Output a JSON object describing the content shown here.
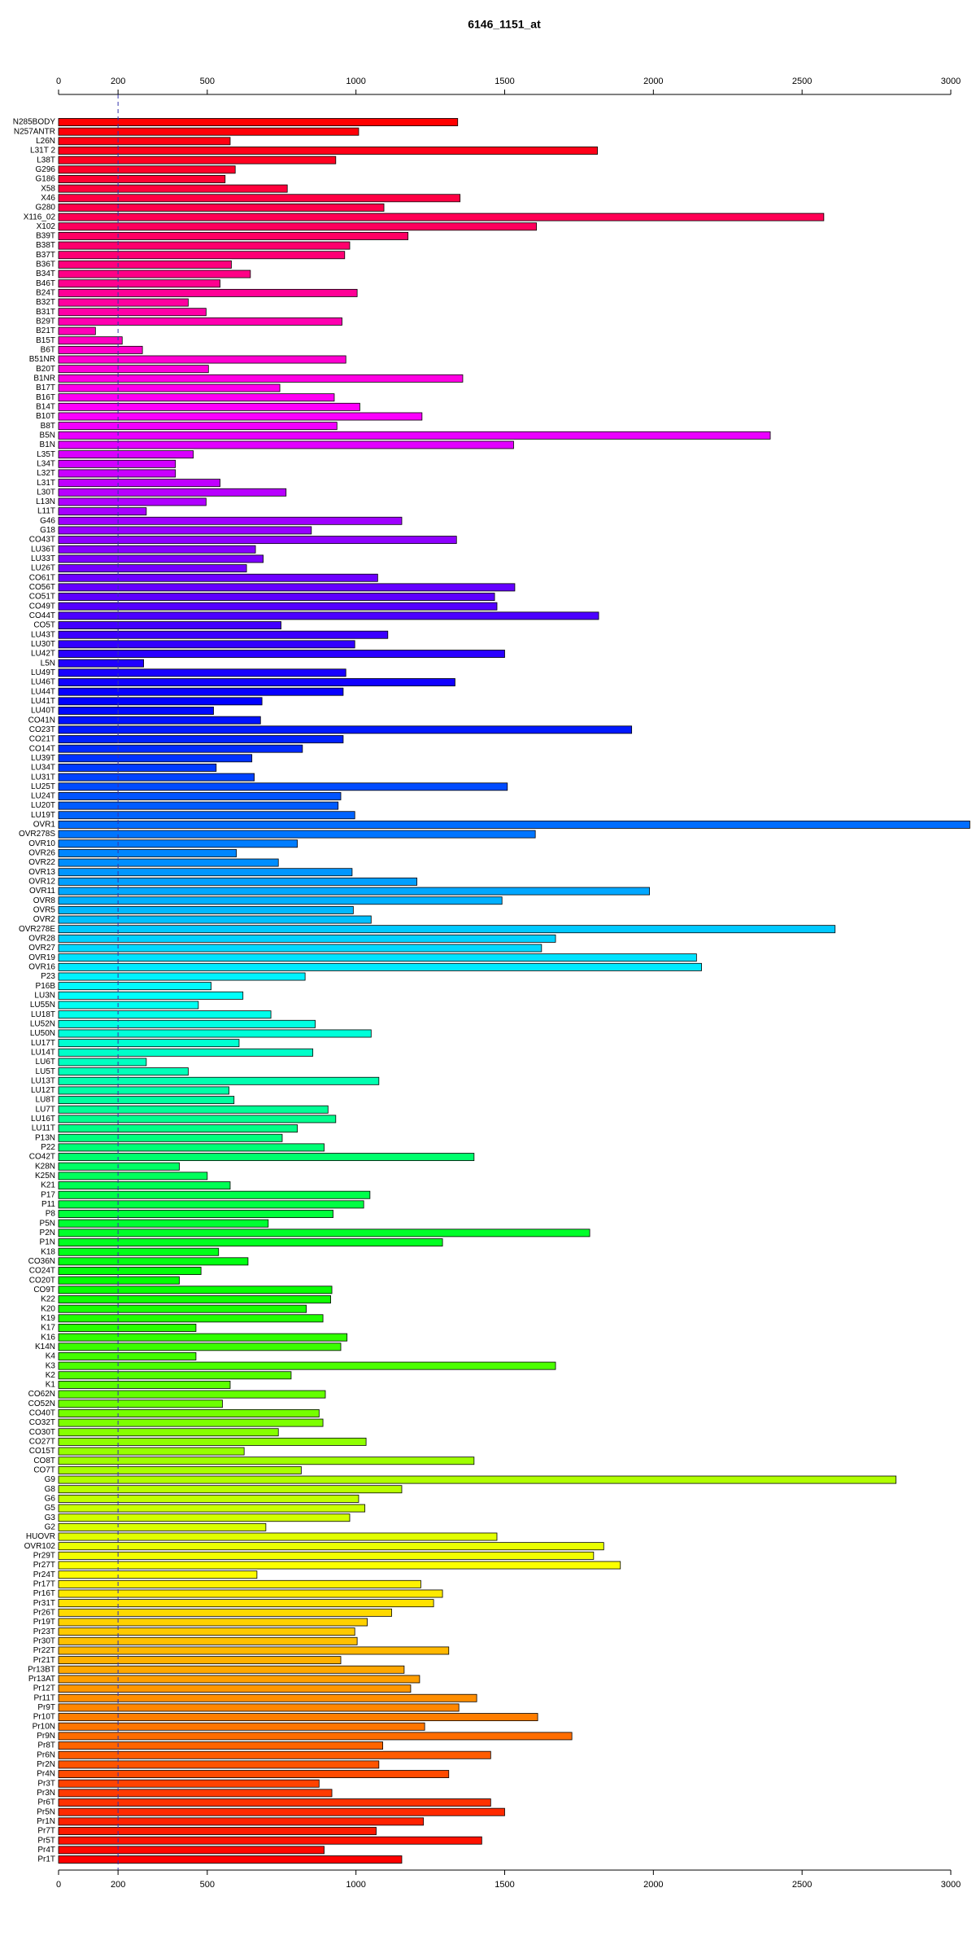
{
  "chart_data": {
    "type": "barh",
    "title": "6146_1151_at",
    "categories": [
      "N285BODY",
      "N257ANTR",
      "L26N",
      "L31T 2",
      "L38T",
      "G296",
      "G186",
      "X58",
      "X46",
      "G280",
      "X116_02",
      "X102",
      "B39T",
      "B38T",
      "B37T",
      "B36T",
      "B34T",
      "B46T",
      "B24T",
      "B32T",
      "B31T",
      "B29T",
      "B21T",
      "B15T",
      "B6T",
      "B51NR",
      "B20T",
      "B1NR",
      "B17T",
      "B16T",
      "B14T",
      "B10T",
      "B8T",
      "B5N",
      "B1N",
      "L35T",
      "L34T",
      "L32T",
      "L31T",
      "L30T",
      "L13N",
      "L11T",
      "G46",
      "G18",
      "CO43T",
      "LU36T",
      "LU33T",
      "LU26T",
      "CO61T",
      "CO56T",
      "CO51T",
      "CO49T",
      "CO44T",
      "CO5T",
      "LU43T",
      "LU30T",
      "LU42T",
      "L5N",
      "LU49T",
      "LU46T",
      "LU44T",
      "LU41T",
      "LU40T",
      "CO41N",
      "CO23T",
      "CO21T",
      "CO14T",
      "LU39T",
      "LU34T",
      "LU31T",
      "LU25T",
      "LU24T",
      "LU20T",
      "LU19T",
      "OVR1",
      "OVR278S",
      "OVR10",
      "OVR26",
      "OVR22",
      "OVR13",
      "OVR12",
      "OVR11",
      "OVR8",
      "OVR5",
      "OVR2",
      "OVR278E",
      "OVR28",
      "OVR27",
      "OVR19",
      "OVR16",
      "P23",
      "P16B",
      "LU3N",
      "LU55N",
      "LU18T",
      "LU52N",
      "LU50N",
      "LU17T",
      "LU14T",
      "LU6T",
      "LU5T",
      "LU13T",
      "LU12T",
      "LU8T",
      "LU7T",
      "LU16T",
      "LU11T",
      "P13N",
      "P22",
      "CO42T",
      "K28N",
      "K25N",
      "K21",
      "P17",
      "P11",
      "P8",
      "P5N",
      "P2N",
      "P1N",
      "K18",
      "CO36N",
      "CO24T",
      "CO20T",
      "CO9T",
      "K22",
      "K20",
      "K19",
      "K17",
      "K16",
      "K14N",
      "K4",
      "K3",
      "K2",
      "K1",
      "CO62N",
      "CO52N",
      "CO40T",
      "CO32T",
      "CO30T",
      "CO27T",
      "CO15T",
      "CO8T",
      "CO7T",
      "G9",
      "G8",
      "G6",
      "G5",
      "G3",
      "G2",
      "HUOVR",
      "OVR102",
      "Pr29T",
      "Pr27T",
      "Pr24T",
      "Pr17T",
      "Pr16T",
      "Pr31T",
      "Pr26T",
      "Pr19T",
      "Pr23T",
      "Pr30T",
      "Pr22T",
      "Pr21T",
      "Pr13BT",
      "Pr13AT",
      "Pr12T",
      "Pr11T",
      "Pr9T",
      "Pr10T",
      "Pr10N",
      "Pr9N",
      "Pr8T",
      "Pr6N",
      "Pr2N",
      "Pr4N",
      "Pr3T",
      "Pr3N",
      "Pr6T",
      "Pr5N",
      "Pr1N",
      "Pr7T",
      "Pr5T",
      "Pr4T",
      "Pr1T"
    ],
    "values": [
      1342,
      1009,
      577,
      1812,
      932,
      594,
      560,
      769,
      1350,
      1094,
      2573,
      1607,
      1175,
      979,
      962,
      581,
      645,
      543,
      1004,
      436,
      496,
      953,
      124,
      214,
      282,
      966,
      504,
      1359,
      744,
      927,
      1013,
      1222,
      936,
      2393,
      1530,
      453,
      393,
      393,
      543,
      765,
      496,
      295,
      1154,
      850,
      1338,
      662,
      688,
      632,
      1073,
      1534,
      1466,
      1474,
      1816,
      748,
      1107,
      996,
      1500,
      286,
      966,
      1333,
      957,
      684,
      521,
      679,
      1927,
      957,
      820,
      650,
      530,
      658,
      1509,
      949,
      940,
      996,
      3064,
      1603,
      803,
      598,
      739,
      987,
      1205,
      1987,
      1491,
      991,
      1051,
      2611,
      1671,
      1624,
      2145,
      2162,
      829,
      513,
      620,
      470,
      714,
      863,
      1051,
      607,
      855,
      295,
      436,
      1077,
      573,
      590,
      906,
      932,
      803,
      752,
      893,
      1397,
      406,
      500,
      577,
      1047,
      1026,
      923,
      705,
      1786,
      1291,
      538,
      637,
      479,
      406,
      919,
      915,
      833,
      889,
      462,
      970,
      949,
      462,
      1671,
      782,
      577,
      897,
      551,
      876,
      889,
      739,
      1034,
      624,
      1397,
      816,
      2816,
      1154,
      1009,
      1030,
      979,
      697,
      1474,
      1833,
      1799,
      1889,
      667,
      1218,
      1291,
      1261,
      1120,
      1038,
      996,
      1004,
      1312,
      949,
      1162,
      1214,
      1184,
      1406,
      1346,
      1611,
      1231,
      1726,
      1090,
      1453,
      1077,
      1312,
      876,
      919,
      1453,
      1500,
      1227,
      1068,
      1423,
      893,
      1154
    ],
    "colors": [
      "#ff0000",
      "#ff00ff",
      "#0000ff",
      "#00ffff",
      "#00ff00",
      "#ffff00",
      "#ff0000"
    ],
    "xlim": [
      0,
      3000
    ],
    "xticks": [
      0,
      200,
      500,
      1000,
      1500,
      2000,
      2500,
      3000
    ],
    "reference_line": 200,
    "reference_color": "#3333aa"
  }
}
